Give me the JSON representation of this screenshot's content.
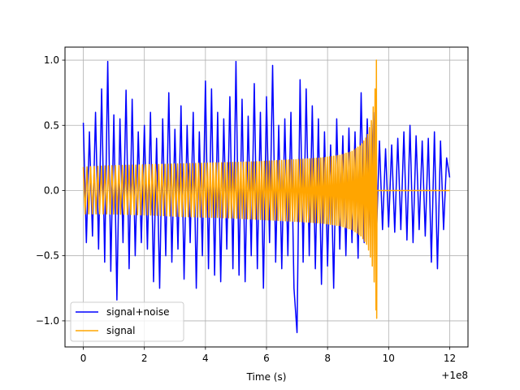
{
  "chart_data": {
    "type": "line",
    "xlabel": "Time (s)",
    "x_offset_label": "+1e8",
    "xlim": [
      -0.6,
      12.6
    ],
    "ylim": [
      -1.2,
      1.1
    ],
    "x_ticks": [
      0,
      2,
      4,
      6,
      8,
      10,
      12
    ],
    "x_tick_labels": [
      "0",
      "2",
      "4",
      "6",
      "8",
      "10",
      "12"
    ],
    "y_ticks": [
      -1.0,
      -0.5,
      0.0,
      0.5,
      1.0
    ],
    "y_tick_labels": [
      "−1.0",
      "−0.5",
      "0.0",
      "0.5",
      "1.0"
    ],
    "grid": true,
    "legend_position": "lower-left",
    "series": [
      {
        "name": "signal+noise",
        "color": "#0000ff",
        "x": [
          0.0,
          0.1,
          0.2,
          0.3,
          0.4,
          0.5,
          0.6,
          0.7,
          0.8,
          0.9,
          1.0,
          1.1,
          1.2,
          1.3,
          1.4,
          1.5,
          1.6,
          1.7,
          1.8,
          1.9,
          2.0,
          2.1,
          2.2,
          2.3,
          2.4,
          2.5,
          2.6,
          2.7,
          2.8,
          2.9,
          3.0,
          3.1,
          3.2,
          3.3,
          3.4,
          3.5,
          3.6,
          3.7,
          3.8,
          3.9,
          4.0,
          4.1,
          4.2,
          4.3,
          4.4,
          4.5,
          4.6,
          4.7,
          4.8,
          4.9,
          5.0,
          5.1,
          5.2,
          5.3,
          5.4,
          5.5,
          5.6,
          5.7,
          5.8,
          5.9,
          6.0,
          6.1,
          6.2,
          6.3,
          6.4,
          6.5,
          6.6,
          6.7,
          6.8,
          6.9,
          7.0,
          7.1,
          7.2,
          7.3,
          7.4,
          7.5,
          7.6,
          7.7,
          7.8,
          7.9,
          8.0,
          8.1,
          8.2,
          8.3,
          8.4,
          8.5,
          8.6,
          8.7,
          8.8,
          8.9,
          9.0,
          9.1,
          9.2,
          9.3,
          9.4,
          9.5,
          9.6,
          9.7,
          9.8,
          9.9,
          10.0,
          10.1,
          10.2,
          10.3,
          10.4,
          10.5,
          10.6,
          10.7,
          10.8,
          10.9,
          11.0,
          11.1,
          11.2,
          11.3,
          11.4,
          11.5,
          11.6,
          11.7,
          11.8,
          11.9,
          12.0
        ],
        "values": [
          0.52,
          -0.4,
          0.45,
          -0.35,
          0.6,
          -0.45,
          0.78,
          -0.55,
          0.99,
          -0.62,
          0.58,
          -0.84,
          0.55,
          -0.4,
          0.77,
          -0.6,
          0.7,
          -0.5,
          0.45,
          -0.4,
          0.5,
          -0.45,
          0.6,
          -0.7,
          0.4,
          -0.75,
          0.55,
          -0.5,
          0.75,
          -0.55,
          0.47,
          -0.45,
          0.65,
          -0.68,
          0.5,
          -0.4,
          0.6,
          -0.75,
          0.45,
          -0.5,
          0.84,
          -0.6,
          0.78,
          -0.65,
          0.6,
          -0.7,
          0.55,
          -0.45,
          0.72,
          -0.6,
          0.99,
          -0.65,
          0.7,
          -0.7,
          0.57,
          -0.5,
          0.82,
          -0.6,
          0.6,
          -0.75,
          0.72,
          -0.4,
          0.96,
          -0.55,
          0.5,
          -0.6,
          0.55,
          -0.5,
          0.6,
          -0.75,
          -1.09,
          0.85,
          -0.55,
          0.78,
          -0.5,
          0.65,
          -0.6,
          0.55,
          -0.72,
          0.45,
          -0.58,
          0.35,
          -0.75,
          0.55,
          -0.45,
          0.42,
          -0.5,
          0.48,
          -0.4,
          0.45,
          -0.52,
          0.75,
          -0.4,
          0.55,
          -0.3,
          0.6,
          -0.35,
          0.38,
          -0.3,
          0.32,
          -0.28,
          0.35,
          -0.32,
          0.4,
          -0.3,
          0.45,
          -0.38,
          0.5,
          -0.4,
          0.42,
          -0.3,
          0.38,
          -0.35,
          0.4,
          -0.55,
          0.45,
          -0.6,
          0.38,
          -0.3,
          0.25,
          0.1
        ]
      },
      {
        "name": "signal",
        "color": "#ffa500",
        "x": [
          0.0,
          0.8,
          1.6,
          2.4,
          3.2,
          4.0,
          4.8,
          5.6,
          6.4,
          7.2,
          7.8,
          8.4,
          8.8,
          9.1,
          9.3,
          9.45,
          9.55,
          9.6,
          9.62,
          10.0,
          11.0,
          12.0
        ],
        "values": [
          0.18,
          0.19,
          0.195,
          0.2,
          0.205,
          0.21,
          0.215,
          0.22,
          0.23,
          0.24,
          0.25,
          0.27,
          0.3,
          0.35,
          0.42,
          0.55,
          0.75,
          1.0,
          0.0,
          0.0,
          0.0,
          0.0
        ],
        "lower": [
          -0.18,
          -0.18,
          -0.185,
          -0.19,
          -0.2,
          -0.205,
          -0.21,
          -0.22,
          -0.23,
          -0.24,
          -0.25,
          -0.27,
          -0.3,
          -0.35,
          -0.42,
          -0.55,
          -0.75,
          -0.98,
          0.0,
          0.0,
          0.0,
          0.0
        ]
      }
    ]
  }
}
